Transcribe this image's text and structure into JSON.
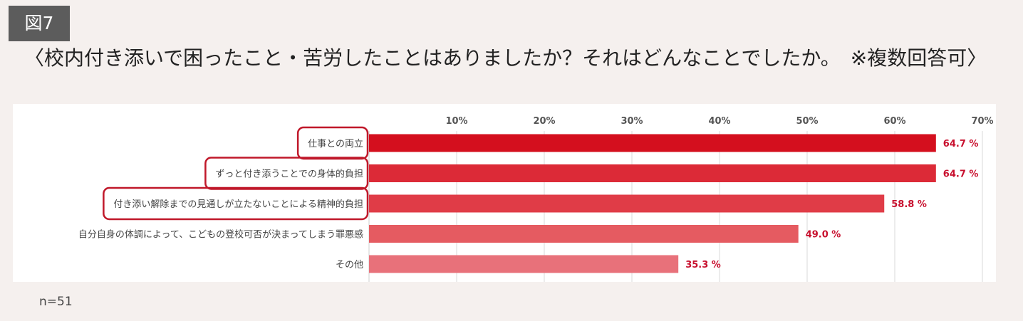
{
  "figure_label": "図7",
  "question": "〈校内付き添いで困ったこと・苦労したことはありましたか？それはどんなことでしたか。　※複数回答可〉",
  "sample_size": "n=51",
  "colors": {
    "label_box": "#5c5c5c",
    "highlight_border": "#c0182a",
    "value_text": "#c8102e",
    "bar_colors": [
      "#d40f1e",
      "#dc2a37",
      "#e03c47",
      "#e55b61",
      "#e8717a"
    ]
  },
  "highlighted_rows": [
    0,
    1,
    2
  ],
  "chart_data": {
    "type": "bar",
    "orientation": "horizontal",
    "title": "",
    "xlabel": "",
    "ylabel": "",
    "categories": [
      "仕事との両立",
      "ずっと付き添うことでの身体的負担",
      "付き添い解除までの見通しが立たないことによる精神的負担",
      "自分自身の体調によって、こどもの登校可否が決まってしまう罪悪感",
      "その他"
    ],
    "values": [
      64.7,
      64.7,
      58.8,
      49.0,
      35.3
    ],
    "value_labels": [
      "64.7 %",
      "64.7 %",
      "58.8 %",
      "49.0 %",
      "35.3 %"
    ],
    "xlim": [
      0,
      70
    ],
    "ticks": [
      10,
      20,
      30,
      40,
      50,
      60,
      70
    ],
    "tick_labels": [
      "10%",
      "20%",
      "30%",
      "40%",
      "50%",
      "60%",
      "70%"
    ],
    "grid": true,
    "legend": "none"
  }
}
